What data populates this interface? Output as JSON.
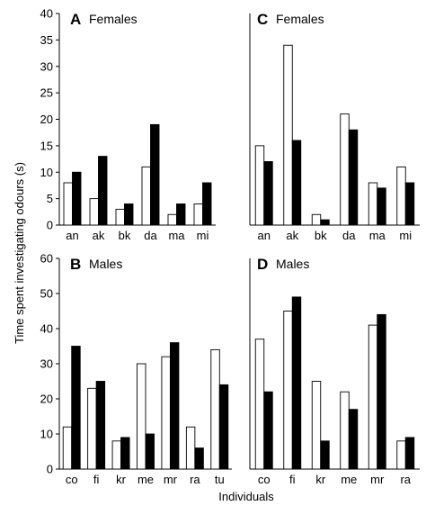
{
  "figure": {
    "ylabel": "Time spent investigating odours (s)",
    "xlabel": "Individuals"
  },
  "chart_data": [
    {
      "type": "bar",
      "panel": "A",
      "title": "Females",
      "categories": [
        "an",
        "ak",
        "bk",
        "da",
        "ma",
        "mi"
      ],
      "series": [
        {
          "fill": "#ffffff",
          "values": [
            8,
            5,
            3,
            11,
            2,
            4
          ]
        },
        {
          "fill": "#000000",
          "values": [
            10,
            13,
            4,
            19,
            4,
            8
          ]
        }
      ],
      "ylim": [
        0,
        40
      ],
      "yticks": [
        0,
        5,
        10,
        15,
        20,
        25,
        30,
        35,
        40
      ]
    },
    {
      "type": "bar",
      "panel": "C",
      "title": "Females",
      "categories": [
        "an",
        "ak",
        "bk",
        "da",
        "ma",
        "mi"
      ],
      "series": [
        {
          "fill": "#ffffff",
          "values": [
            15,
            34,
            2,
            21,
            8,
            11
          ]
        },
        {
          "fill": "#000000",
          "values": [
            12,
            16,
            1,
            18,
            7,
            8
          ]
        }
      ],
      "ylim": [
        0,
        40
      ]
    },
    {
      "type": "bar",
      "panel": "B",
      "title": "Males",
      "categories": [
        "co",
        "fi",
        "kr",
        "me",
        "mr",
        "ra",
        "tu"
      ],
      "series": [
        {
          "fill": "#ffffff",
          "values": [
            12,
            23,
            8,
            30,
            32,
            12,
            34
          ]
        },
        {
          "fill": "#000000",
          "values": [
            35,
            25,
            9,
            10,
            36,
            6,
            24
          ]
        }
      ],
      "ylim": [
        0,
        60
      ],
      "yticks": [
        0,
        10,
        20,
        30,
        40,
        50,
        60
      ]
    },
    {
      "type": "bar",
      "panel": "D",
      "title": "Males",
      "categories": [
        "co",
        "fi",
        "kr",
        "me",
        "mr",
        "ra"
      ],
      "series": [
        {
          "fill": "#ffffff",
          "values": [
            37,
            45,
            25,
            22,
            41,
            8
          ]
        },
        {
          "fill": "#000000",
          "values": [
            22,
            49,
            8,
            17,
            44,
            9
          ]
        }
      ],
      "ylim": [
        0,
        60
      ]
    }
  ]
}
